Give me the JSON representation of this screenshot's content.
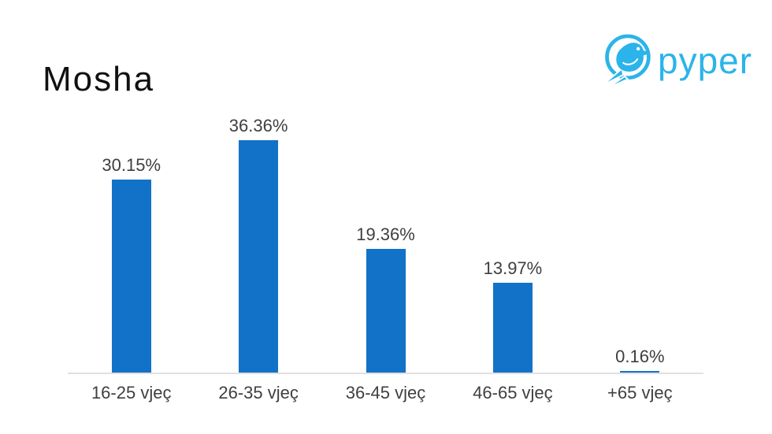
{
  "title": "Mosha",
  "logo": {
    "brand": "pyper",
    "icon": "pyper-bird-icon",
    "color": "#2bb4e9"
  },
  "colors": {
    "background": "#ffffff",
    "bar": "#1172c8",
    "text": "#3f3f3f",
    "title": "#111111",
    "axis": "#e0e0e0"
  },
  "chart_data": {
    "type": "bar",
    "title": "Mosha",
    "categories": [
      "16-25 vjeç",
      "26-35 vjeç",
      "36-45 vjeç",
      "46-65 vjeç",
      "+65 vjeç"
    ],
    "values": [
      30.15,
      36.36,
      19.36,
      13.97,
      0.16
    ],
    "data_labels": [
      "30.15%",
      "36.36%",
      "19.36%",
      "13.97%",
      "0.16%"
    ],
    "xlabel": "",
    "ylabel": "",
    "ylim": [
      0,
      40
    ],
    "grid": false,
    "legend": false,
    "bar_color": "#1172c8",
    "axis_line": "bottom-only"
  }
}
